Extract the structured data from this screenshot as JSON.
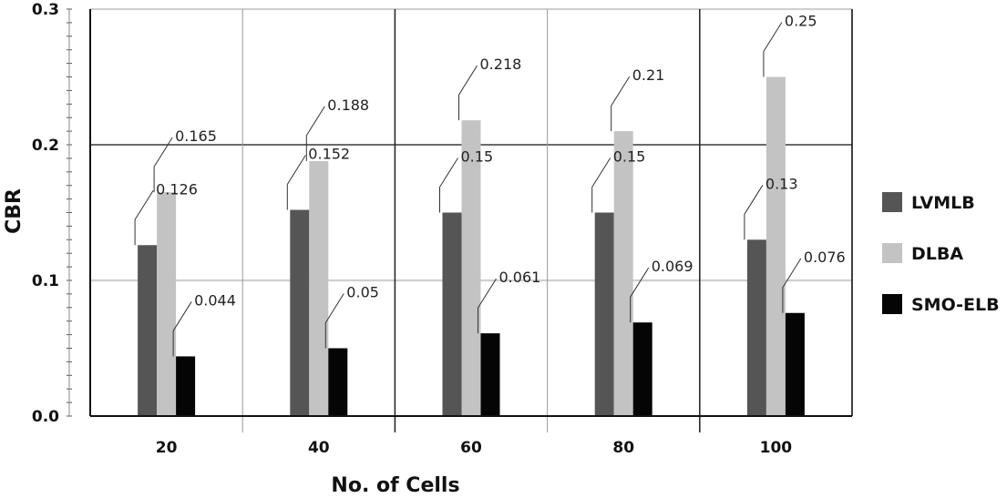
{
  "chart_data": {
    "type": "bar",
    "title": "",
    "xlabel": "No. of Cells",
    "ylabel": "CBR",
    "categories": [
      "20",
      "40",
      "60",
      "80",
      "100"
    ],
    "ylim": [
      0,
      0.3
    ],
    "yticks": [
      {
        "value": 0.0,
        "label": "0.0"
      },
      {
        "value": 0.1,
        "label": "0.1"
      },
      {
        "value": 0.2,
        "label": "0.2"
      },
      {
        "value": 0.3,
        "label": "0.3"
      }
    ],
    "grid": true,
    "legend_position": "right",
    "series": [
      {
        "name": "LVMLB",
        "color": "#555555",
        "values": [
          0.126,
          0.152,
          0.15,
          0.15,
          0.13
        ],
        "labels": [
          "0.126",
          "0.152",
          "0.15",
          "0.15",
          "0.13"
        ]
      },
      {
        "name": "DLBA",
        "color": "#c3c3c3",
        "values": [
          0.165,
          0.188,
          0.218,
          0.21,
          0.25
        ],
        "labels": [
          "0.165",
          "0.188",
          "0.218",
          "0.21",
          "0.25"
        ]
      },
      {
        "name": "SMO-ELB",
        "color": "#050505",
        "values": [
          0.044,
          0.05,
          0.061,
          0.069,
          0.076
        ],
        "labels": [
          "0.044",
          "0.05",
          "0.061",
          "0.069",
          "0.076"
        ]
      }
    ]
  }
}
